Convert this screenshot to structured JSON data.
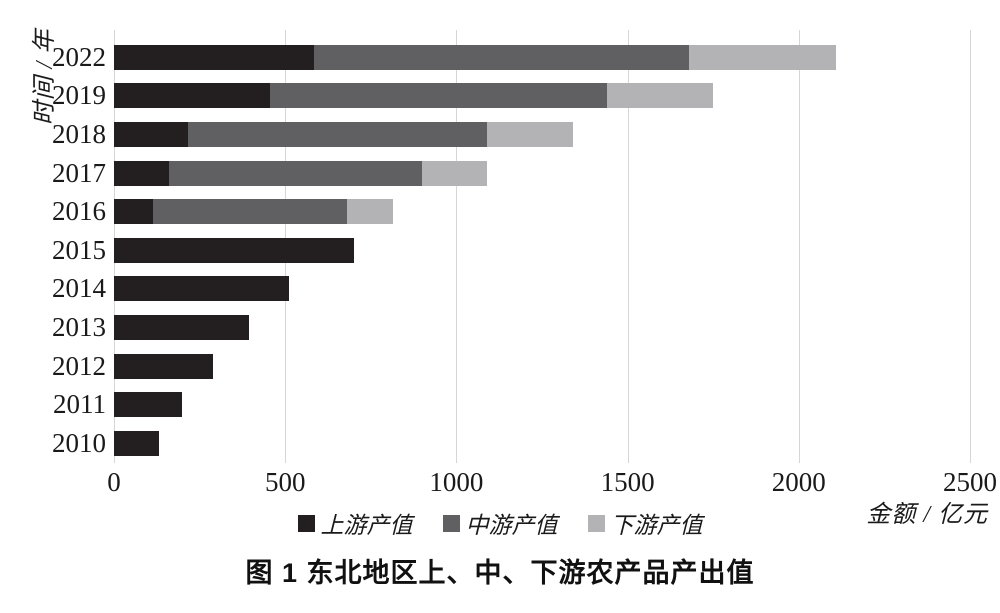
{
  "title": "图 1  东北地区上、中、下游农产品产出值",
  "y_axis_label": "时间 / 年",
  "x_axis_label": "金额 / 亿元",
  "colors": {
    "upstream": "#231f20",
    "midstream": "#606062",
    "downstream": "#b3b3b5",
    "gridline": "#d6d6d6",
    "text": "#1a1a1a"
  },
  "chart_data": {
    "type": "bar",
    "orientation": "horizontal",
    "stacked": true,
    "title": "图 1  东北地区上、中、下游农产品产出值",
    "xlabel": "金额 / 亿元",
    "ylabel": "时间 / 年",
    "categories": [
      "2022",
      "2019",
      "2018",
      "2017",
      "2016",
      "2015",
      "2014",
      "2013",
      "2012",
      "2011",
      "2010"
    ],
    "series": [
      {
        "name": "上游产值",
        "color": "#231f20",
        "values": [
          585,
          455,
          215,
          160,
          115,
          700,
          510,
          395,
          290,
          200,
          130
        ]
      },
      {
        "name": "中游产值",
        "color": "#606062",
        "values": [
          1095,
          985,
          875,
          740,
          565,
          0,
          0,
          0,
          0,
          0,
          0
        ]
      },
      {
        "name": "下游产值",
        "color": "#b3b3b5",
        "values": [
          430,
          310,
          250,
          190,
          135,
          0,
          0,
          0,
          0,
          0,
          0
        ]
      }
    ],
    "totals": [
      2110,
      1750,
      1340,
      1090,
      815,
      700,
      510,
      395,
      290,
      200,
      130
    ],
    "x_ticks": [
      0,
      500,
      1000,
      1500,
      2000,
      2500
    ],
    "xlim": [
      0,
      2500
    ],
    "grid": true,
    "gridline_color": "#d6d6d6",
    "legend_position": "bottom"
  }
}
